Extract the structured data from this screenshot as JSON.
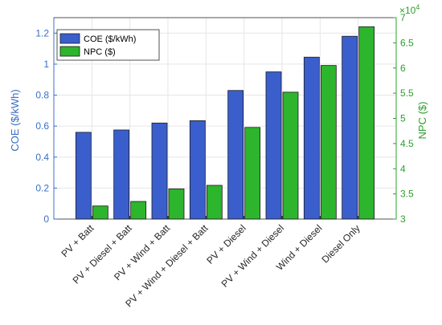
{
  "chart_data": {
    "type": "bar",
    "categories": [
      "PV + Batt",
      "PV + Diesel + Batt",
      "PV + Wind + Batt",
      "PV + Wind + Diesel + Batt",
      "PV + Diesel",
      "PV + Wind + Diesel",
      "Wind + Diesel",
      "Diesel Only"
    ],
    "series": [
      {
        "name": "COE ($/kWh)",
        "axis": "left",
        "color": "#3a5fcd",
        "values": [
          0.56,
          0.575,
          0.62,
          0.635,
          0.83,
          0.95,
          1.045,
          1.18
        ]
      },
      {
        "name": "NPC ($)",
        "axis": "right",
        "color": "#2db52d",
        "values": [
          32600,
          33500,
          36000,
          36700,
          48200,
          55200,
          60500,
          68200
        ]
      }
    ],
    "ylabel_left": "COE ($/kWh)",
    "ylabel_right": "NPC ($)",
    "ylim_left": [
      0,
      1.3
    ],
    "ylim_right": [
      30000,
      70000
    ],
    "yticks_left": [
      "0",
      "0.2",
      "0.4",
      "0.6",
      "0.8",
      "1",
      "1.2"
    ],
    "yticks_right": [
      "3",
      "3.5",
      "4",
      "4.5",
      "5",
      "5.5",
      "6",
      "6.5",
      "7"
    ],
    "right_axis_exponent": {
      "base": "×10",
      "power": "4"
    },
    "left_axis_color": "#3a6fc4",
    "right_axis_color": "#2ca02c",
    "grid": true,
    "legend_position": "top-left"
  }
}
